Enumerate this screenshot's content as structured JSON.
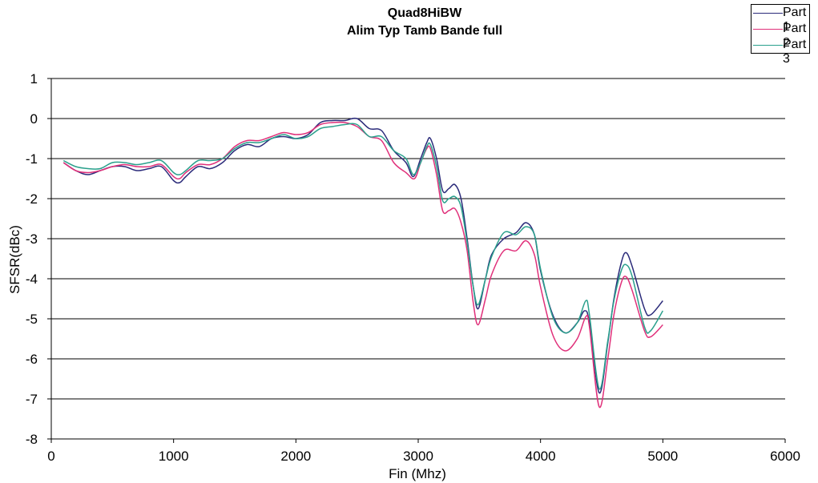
{
  "chart_data": {
    "type": "line",
    "title": "Quad8HiBW",
    "subtitle": "Alim Typ Tamb Bande full",
    "xlabel": "Fin (Mhz)",
    "ylabel": "SFSR(dBc)",
    "xlim": [
      0,
      6000
    ],
    "ylim": [
      -8,
      1
    ],
    "xticks": [
      0,
      1000,
      2000,
      3000,
      4000,
      5000,
      6000
    ],
    "yticks": [
      1,
      0,
      -1,
      -2,
      -3,
      -4,
      -5,
      -6,
      -7,
      -8
    ],
    "grid": true,
    "legend_position": "top-right",
    "series": [
      {
        "name": "Part 1",
        "color": "#2b2b7a",
        "points": [
          [
            100,
            -1.1
          ],
          [
            200,
            -1.3
          ],
          [
            300,
            -1.4
          ],
          [
            400,
            -1.3
          ],
          [
            500,
            -1.2
          ],
          [
            600,
            -1.2
          ],
          [
            700,
            -1.3
          ],
          [
            800,
            -1.25
          ],
          [
            900,
            -1.2
          ],
          [
            1000,
            -1.55
          ],
          [
            1050,
            -1.6
          ],
          [
            1100,
            -1.45
          ],
          [
            1200,
            -1.2
          ],
          [
            1300,
            -1.25
          ],
          [
            1400,
            -1.1
          ],
          [
            1500,
            -0.8
          ],
          [
            1600,
            -0.65
          ],
          [
            1700,
            -0.7
          ],
          [
            1800,
            -0.5
          ],
          [
            1900,
            -0.45
          ],
          [
            2000,
            -0.5
          ],
          [
            2100,
            -0.4
          ],
          [
            2200,
            -0.1
          ],
          [
            2300,
            -0.05
          ],
          [
            2400,
            -0.05
          ],
          [
            2500,
            0.0
          ],
          [
            2600,
            -0.25
          ],
          [
            2700,
            -0.3
          ],
          [
            2800,
            -0.8
          ],
          [
            2900,
            -1.1
          ],
          [
            2960,
            -1.45
          ],
          [
            3020,
            -1.0
          ],
          [
            3070,
            -0.6
          ],
          [
            3100,
            -0.5
          ],
          [
            3150,
            -1.0
          ],
          [
            3200,
            -1.8
          ],
          [
            3250,
            -1.75
          ],
          [
            3300,
            -1.65
          ],
          [
            3350,
            -2.0
          ],
          [
            3400,
            -3.0
          ],
          [
            3450,
            -4.2
          ],
          [
            3490,
            -4.75
          ],
          [
            3550,
            -4.0
          ],
          [
            3600,
            -3.4
          ],
          [
            3700,
            -3.0
          ],
          [
            3800,
            -2.85
          ],
          [
            3880,
            -2.6
          ],
          [
            3950,
            -2.9
          ],
          [
            4000,
            -3.8
          ],
          [
            4100,
            -4.9
          ],
          [
            4200,
            -5.35
          ],
          [
            4300,
            -5.1
          ],
          [
            4360,
            -4.8
          ],
          [
            4400,
            -5.1
          ],
          [
            4480,
            -6.85
          ],
          [
            4550,
            -5.6
          ],
          [
            4600,
            -4.5
          ],
          [
            4660,
            -3.6
          ],
          [
            4700,
            -3.35
          ],
          [
            4750,
            -3.7
          ],
          [
            4850,
            -4.75
          ],
          [
            4900,
            -4.9
          ],
          [
            5000,
            -4.55
          ]
        ]
      },
      {
        "name": "Part 2",
        "color": "#e0307a",
        "points": [
          [
            100,
            -1.1
          ],
          [
            200,
            -1.3
          ],
          [
            300,
            -1.35
          ],
          [
            400,
            -1.3
          ],
          [
            500,
            -1.2
          ],
          [
            600,
            -1.15
          ],
          [
            700,
            -1.2
          ],
          [
            800,
            -1.2
          ],
          [
            900,
            -1.15
          ],
          [
            1000,
            -1.45
          ],
          [
            1050,
            -1.5
          ],
          [
            1100,
            -1.35
          ],
          [
            1200,
            -1.15
          ],
          [
            1300,
            -1.15
          ],
          [
            1400,
            -1.0
          ],
          [
            1500,
            -0.7
          ],
          [
            1600,
            -0.55
          ],
          [
            1700,
            -0.55
          ],
          [
            1800,
            -0.45
          ],
          [
            1900,
            -0.35
          ],
          [
            2000,
            -0.4
          ],
          [
            2100,
            -0.35
          ],
          [
            2200,
            -0.15
          ],
          [
            2300,
            -0.1
          ],
          [
            2400,
            -0.1
          ],
          [
            2500,
            -0.2
          ],
          [
            2600,
            -0.45
          ],
          [
            2700,
            -0.55
          ],
          [
            2800,
            -1.1
          ],
          [
            2900,
            -1.35
          ],
          [
            2970,
            -1.5
          ],
          [
            3020,
            -1.1
          ],
          [
            3070,
            -0.75
          ],
          [
            3100,
            -0.75
          ],
          [
            3150,
            -1.4
          ],
          [
            3200,
            -2.3
          ],
          [
            3250,
            -2.3
          ],
          [
            3300,
            -2.25
          ],
          [
            3350,
            -2.6
          ],
          [
            3400,
            -3.3
          ],
          [
            3450,
            -4.6
          ],
          [
            3490,
            -5.15
          ],
          [
            3550,
            -4.5
          ],
          [
            3600,
            -3.9
          ],
          [
            3700,
            -3.3
          ],
          [
            3800,
            -3.3
          ],
          [
            3880,
            -3.05
          ],
          [
            3950,
            -3.4
          ],
          [
            4000,
            -4.2
          ],
          [
            4100,
            -5.4
          ],
          [
            4200,
            -5.8
          ],
          [
            4300,
            -5.5
          ],
          [
            4370,
            -4.95
          ],
          [
            4400,
            -5.2
          ],
          [
            4480,
            -7.2
          ],
          [
            4550,
            -6.0
          ],
          [
            4600,
            -4.9
          ],
          [
            4660,
            -4.1
          ],
          [
            4700,
            -3.95
          ],
          [
            4750,
            -4.3
          ],
          [
            4850,
            -5.3
          ],
          [
            4900,
            -5.45
          ],
          [
            5000,
            -5.15
          ]
        ]
      },
      {
        "name": "Part 3",
        "color": "#2aa08c",
        "points": [
          [
            100,
            -1.05
          ],
          [
            200,
            -1.2
          ],
          [
            300,
            -1.25
          ],
          [
            400,
            -1.25
          ],
          [
            500,
            -1.1
          ],
          [
            600,
            -1.1
          ],
          [
            700,
            -1.15
          ],
          [
            800,
            -1.1
          ],
          [
            900,
            -1.05
          ],
          [
            1000,
            -1.35
          ],
          [
            1050,
            -1.4
          ],
          [
            1100,
            -1.3
          ],
          [
            1200,
            -1.05
          ],
          [
            1300,
            -1.05
          ],
          [
            1400,
            -1.0
          ],
          [
            1500,
            -0.75
          ],
          [
            1600,
            -0.6
          ],
          [
            1700,
            -0.6
          ],
          [
            1800,
            -0.5
          ],
          [
            1900,
            -0.4
          ],
          [
            2000,
            -0.5
          ],
          [
            2100,
            -0.45
          ],
          [
            2200,
            -0.25
          ],
          [
            2300,
            -0.2
          ],
          [
            2400,
            -0.15
          ],
          [
            2500,
            -0.15
          ],
          [
            2600,
            -0.45
          ],
          [
            2700,
            -0.45
          ],
          [
            2800,
            -0.8
          ],
          [
            2900,
            -1.0
          ],
          [
            2960,
            -1.4
          ],
          [
            3020,
            -1.1
          ],
          [
            3070,
            -0.7
          ],
          [
            3100,
            -0.65
          ],
          [
            3150,
            -1.2
          ],
          [
            3200,
            -2.05
          ],
          [
            3250,
            -2.0
          ],
          [
            3300,
            -1.95
          ],
          [
            3350,
            -2.2
          ],
          [
            3400,
            -3.1
          ],
          [
            3450,
            -4.2
          ],
          [
            3490,
            -4.65
          ],
          [
            3550,
            -4.0
          ],
          [
            3600,
            -3.45
          ],
          [
            3700,
            -2.85
          ],
          [
            3800,
            -2.9
          ],
          [
            3880,
            -2.7
          ],
          [
            3950,
            -2.9
          ],
          [
            4000,
            -3.75
          ],
          [
            4100,
            -4.95
          ],
          [
            4200,
            -5.35
          ],
          [
            4300,
            -5.1
          ],
          [
            4370,
            -4.55
          ],
          [
            4400,
            -4.9
          ],
          [
            4480,
            -6.75
          ],
          [
            4550,
            -5.55
          ],
          [
            4600,
            -4.55
          ],
          [
            4660,
            -3.8
          ],
          [
            4700,
            -3.65
          ],
          [
            4750,
            -3.95
          ],
          [
            4850,
            -5.2
          ],
          [
            4900,
            -5.3
          ],
          [
            5000,
            -4.8
          ]
        ]
      }
    ]
  },
  "legend": {
    "items": [
      {
        "label": "Part 1",
        "color": "#2b2b7a"
      },
      {
        "label": "Part 2",
        "color": "#e0307a"
      },
      {
        "label": "Part 3",
        "color": "#2aa08c"
      }
    ]
  }
}
